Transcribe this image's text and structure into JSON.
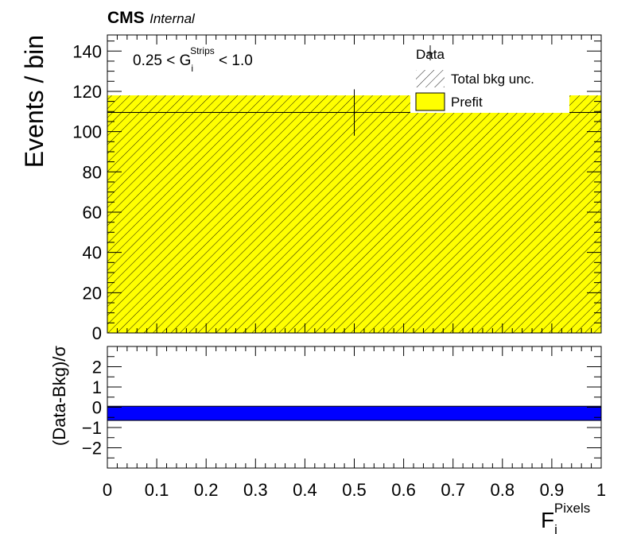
{
  "header": {
    "experiment": "CMS",
    "status": "Internal"
  },
  "chart_data": [
    {
      "type": "bar",
      "panel": "main",
      "x": [
        0,
        1
      ],
      "bin_edges": [
        0,
        1
      ],
      "prefit": {
        "name": "Prefit",
        "values": [
          109.5
        ],
        "color": "#ffff00"
      },
      "total_bkg_unc": {
        "name": "Total bkg unc.",
        "low": [
          0
        ],
        "high": [
          118
        ]
      },
      "data": {
        "name": "Data",
        "x": [
          0.5
        ],
        "y": [
          109.5
        ],
        "yerr": [
          11.5
        ]
      },
      "xlim": [
        0,
        1
      ],
      "ylim": [
        0,
        148
      ],
      "yticks": [
        0,
        20,
        40,
        60,
        80,
        100,
        120,
        140
      ],
      "ylabel": "Events / bin",
      "region_label": {
        "prefix": "0.25 < G",
        "sub": "i",
        "sup": "Strips",
        "suffix": " < 1.0"
      },
      "legend_placement": "top-right",
      "legend": [
        "Data",
        "Total bkg unc.",
        "Prefit"
      ]
    },
    {
      "type": "bar",
      "panel": "ratio",
      "bin_edges": [
        0,
        1
      ],
      "pull_band": {
        "low": -0.65,
        "high": 0.05,
        "color": "#0000ff"
      },
      "xlim": [
        0,
        1
      ],
      "ylim": [
        -3,
        3
      ],
      "yticks": [
        -2,
        -1,
        0,
        1,
        2
      ],
      "ylabel": "(Data-Bkg)/σ",
      "xticks": [
        0,
        0.1,
        0.2,
        0.3,
        0.4,
        0.5,
        0.6,
        0.7,
        0.8,
        0.9,
        1
      ],
      "xlabel": {
        "base": "F",
        "sub": "i",
        "sup": "Pixels"
      }
    }
  ]
}
